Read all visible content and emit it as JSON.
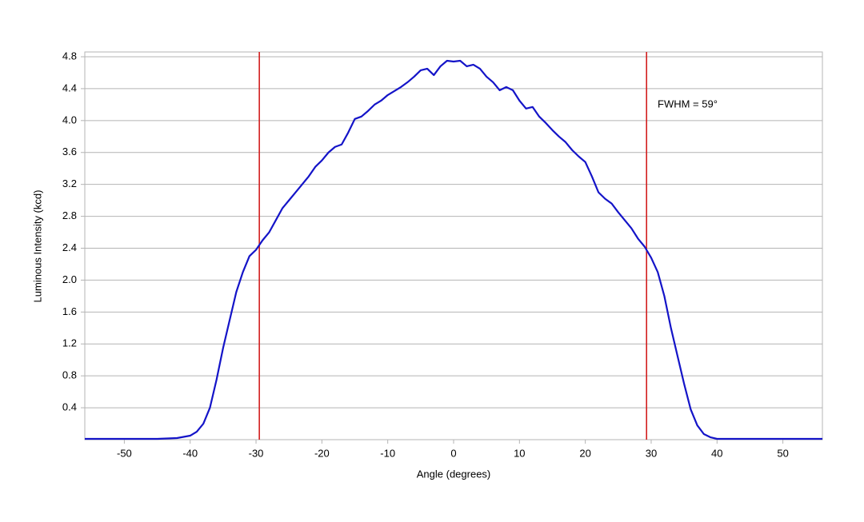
{
  "chart_data": {
    "type": "line",
    "x_label": "Angle (degrees)",
    "y_label": "Luminous Intensity (kcd)",
    "annotation": "FWHM = 59°",
    "vlines": [
      -29.5,
      29.3
    ],
    "vline_color": "#d21e1e",
    "x": [
      -56,
      -45,
      -42,
      -40,
      -39,
      -38,
      -37,
      -36,
      -35,
      -34,
      -33,
      -32,
      -31,
      -30,
      -29,
      -28,
      -27,
      -26,
      -25,
      -24,
      -23,
      -22,
      -21,
      -20,
      -19,
      -18,
      -17,
      -16,
      -15,
      -14,
      -13,
      -12,
      -11,
      -10,
      -9,
      -8,
      -7,
      -6,
      -5,
      -4,
      -3,
      -2,
      -1,
      0,
      1,
      2,
      3,
      4,
      5,
      6,
      7,
      8,
      9,
      10,
      11,
      12,
      13,
      14,
      15,
      16,
      17,
      18,
      19,
      20,
      21,
      22,
      23,
      24,
      25,
      26,
      27,
      28,
      29,
      30,
      31,
      32,
      33,
      34,
      35,
      36,
      37,
      38,
      39,
      40,
      45,
      56
    ],
    "series": [
      {
        "name": "Luminous intensity",
        "color": "#1414c8",
        "values": [
          0.01,
          0.01,
          0.02,
          0.05,
          0.1,
          0.2,
          0.4,
          0.75,
          1.15,
          1.5,
          1.85,
          2.1,
          2.3,
          2.38,
          2.5,
          2.6,
          2.75,
          2.9,
          3.0,
          3.1,
          3.2,
          3.3,
          3.42,
          3.5,
          3.6,
          3.67,
          3.7,
          3.85,
          4.02,
          4.05,
          4.12,
          4.2,
          4.25,
          4.32,
          4.37,
          4.42,
          4.48,
          4.55,
          4.63,
          4.65,
          4.57,
          4.68,
          4.75,
          4.74,
          4.75,
          4.68,
          4.7,
          4.65,
          4.55,
          4.48,
          4.38,
          4.42,
          4.38,
          4.25,
          4.15,
          4.17,
          4.05,
          3.97,
          3.88,
          3.8,
          3.73,
          3.63,
          3.55,
          3.48,
          3.3,
          3.1,
          3.02,
          2.96,
          2.85,
          2.75,
          2.65,
          2.52,
          2.42,
          2.28,
          2.1,
          1.8,
          1.4,
          1.05,
          0.7,
          0.38,
          0.18,
          0.07,
          0.03,
          0.01,
          0.01,
          0.01
        ]
      }
    ],
    "xlim": [
      -56,
      56
    ],
    "xticks": [
      -50,
      -40,
      -30,
      -20,
      -10,
      0,
      10,
      20,
      30,
      40,
      50
    ],
    "ylim": [
      0,
      4.86
    ],
    "yticks": [
      0.4,
      0.8,
      1.2,
      1.6,
      {
        "value": 2,
        "label": "2.0"
      },
      2.4,
      2.8,
      3.2,
      3.6,
      {
        "value": 4,
        "label": "4.0"
      },
      4.4,
      4.8
    ],
    "grid": true
  }
}
